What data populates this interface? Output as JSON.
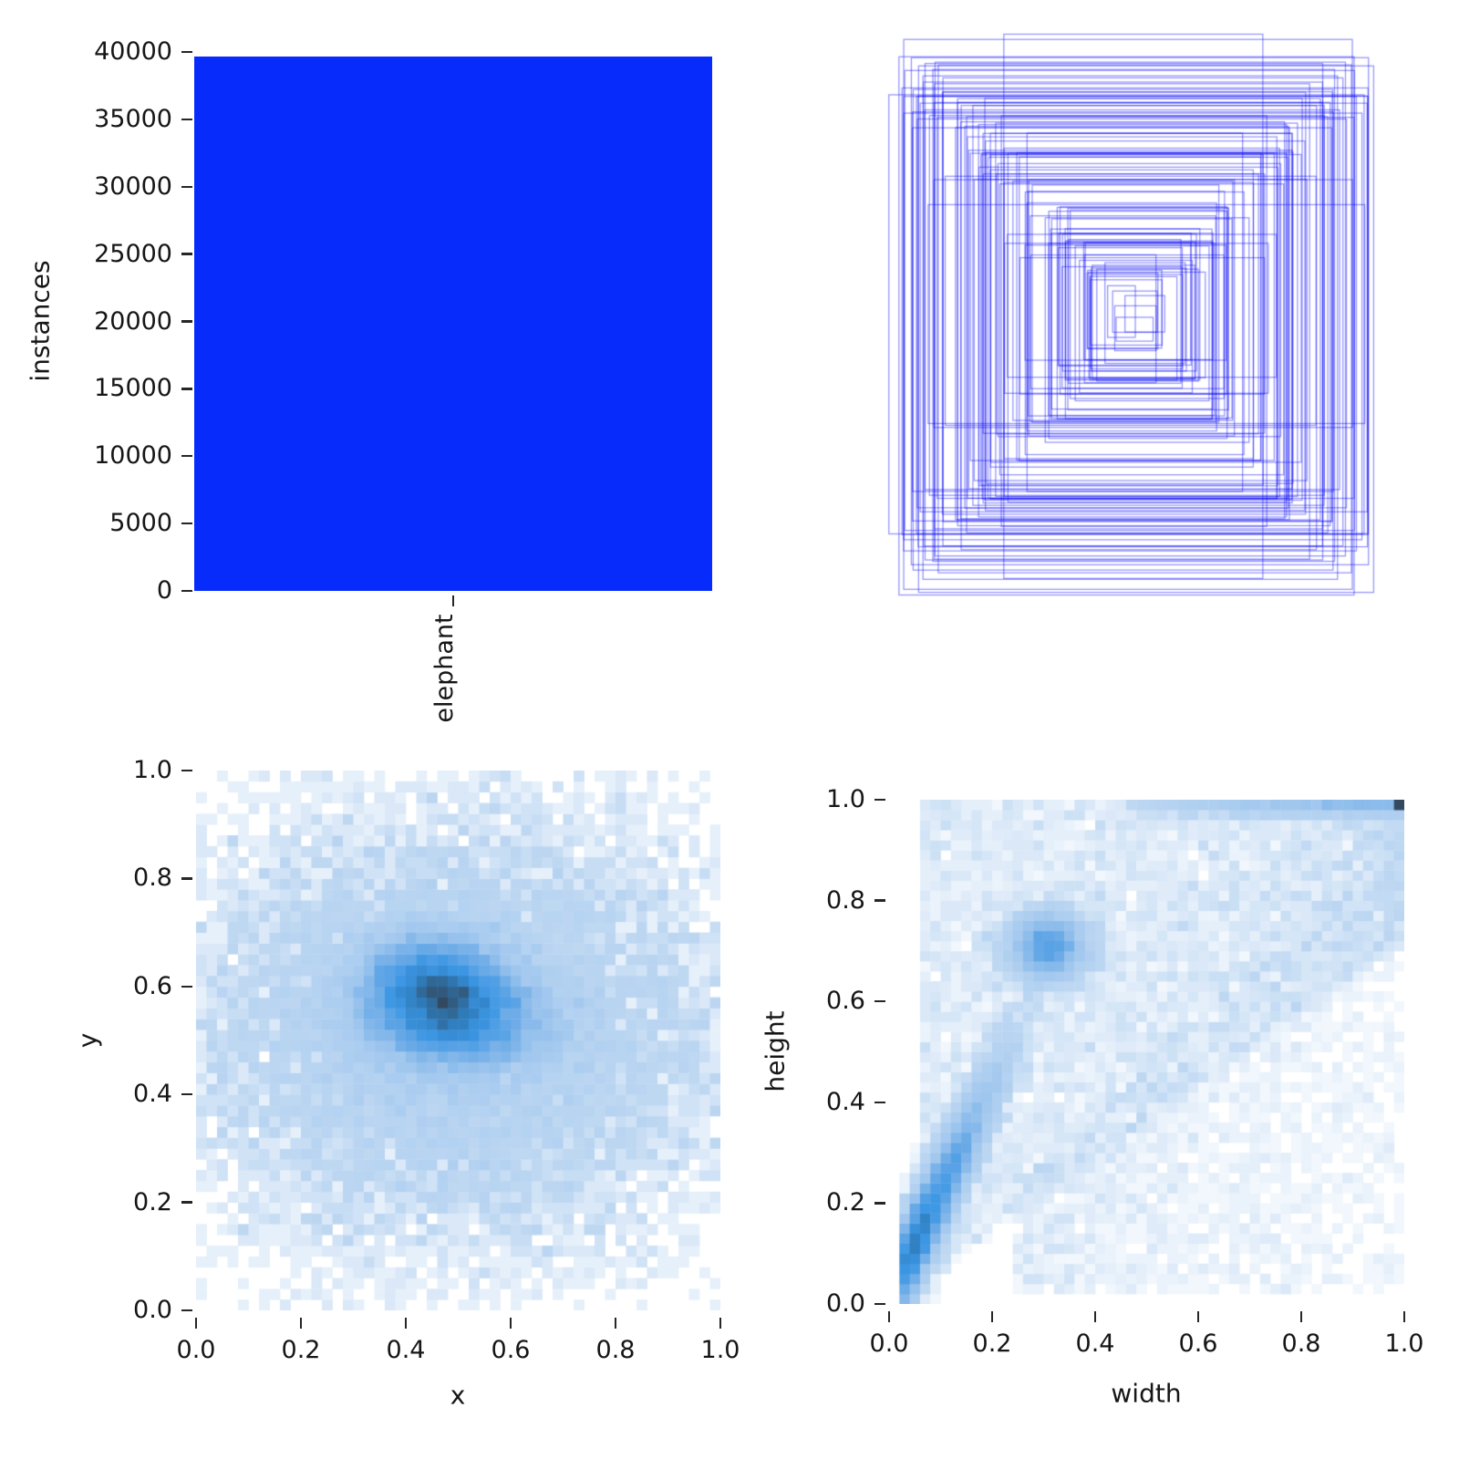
{
  "figure": {
    "background": "#ffffff",
    "text_color": "#161616",
    "tick_color": "#262626",
    "grid": false,
    "legend": false
  },
  "chart_data": [
    {
      "id": "instances_bar",
      "type": "bar",
      "position": "top-left",
      "title": "",
      "categories": [
        "elephant"
      ],
      "values": [
        39660
      ],
      "xlabel": "",
      "ylabel": "instances",
      "ylim": [
        0,
        40000
      ],
      "yticks": [
        0,
        5000,
        10000,
        15000,
        20000,
        25000,
        30000,
        35000,
        40000
      ],
      "ytick_labels": [
        "0",
        "5000",
        "10000",
        "15000",
        "20000",
        "25000",
        "30000",
        "35000",
        "40000"
      ],
      "bar_color": "#062bfa"
    },
    {
      "id": "bounding_boxes_overlay",
      "type": "box-overlay",
      "position": "top-right",
      "description": "Approximately 120 nested blue bounding-box outlines, roughly concentric around the panel center, no axes",
      "box_count": 120,
      "stroke_color": "#0a0af5",
      "stroke_opacity": 0.42,
      "line_width": 1.3,
      "center_jitter": 0.055,
      "seed": 7
    },
    {
      "id": "xy_location_heatmap",
      "type": "heatmap",
      "position": "bottom-left",
      "xlabel": "x",
      "ylabel": "y",
      "xlim": [
        0,
        1
      ],
      "ylim": [
        0,
        1
      ],
      "xticks": [
        0.0,
        0.2,
        0.4,
        0.6,
        0.8,
        1.0
      ],
      "yticks": [
        0.0,
        0.2,
        0.4,
        0.6,
        0.8,
        1.0
      ],
      "xtick_labels": [
        "0.0",
        "0.2",
        "0.4",
        "0.6",
        "0.8",
        "1.0"
      ],
      "ytick_labels": [
        "0.0",
        "0.2",
        "0.4",
        "0.6",
        "0.8",
        "1.0"
      ],
      "bins": 50,
      "samples": 30000,
      "seed": 11,
      "gamma": 0.6,
      "distribution_note": "dense dark cluster centered near (0.47,0.55), broad light-blue background over most of the unit square, sparse at edges",
      "components": [
        {
          "kind": "gauss",
          "frac": 0.3,
          "cx": 0.455,
          "cy": 0.6,
          "sx": 0.075,
          "sy": 0.05
        },
        {
          "kind": "gauss",
          "frac": 0.26,
          "cx": 0.5,
          "cy": 0.535,
          "sx": 0.09,
          "sy": 0.05
        },
        {
          "kind": "gauss",
          "frac": 0.44,
          "cx": 0.5,
          "cy": 0.52,
          "sx": 0.27,
          "sy": 0.21
        }
      ]
    },
    {
      "id": "width_height_heatmap",
      "type": "heatmap",
      "position": "bottom-right",
      "xlabel": "width",
      "ylabel": "height",
      "xlim": [
        0,
        1
      ],
      "ylim": [
        0,
        1
      ],
      "xticks": [
        0.0,
        0.2,
        0.4,
        0.6,
        0.8,
        1.0
      ],
      "yticks": [
        0.0,
        0.2,
        0.4,
        0.6,
        0.8,
        1.0
      ],
      "xtick_labels": [
        "0.0",
        "0.2",
        "0.4",
        "0.6",
        "0.8",
        "1.0"
      ],
      "ytick_labels": [
        "0.0",
        "0.2",
        "0.4",
        "0.6",
        "0.8",
        "1.0"
      ],
      "bins": 50,
      "samples": 30000,
      "seed": 23,
      "gamma": 0.62,
      "distribution_note": "dark diagonal ridge height≈2×width from (0.03,0.08) to (0.3,0.65), dark secondary blob near (0.31,0.71), light fan above diagonal, bright row at height≈1.0, dark cell at (1.0,1.0)",
      "components": [
        {
          "kind": "ridge",
          "frac": 0.47,
          "x0": 0.025,
          "xs": 0.09,
          "slope": 2.05,
          "intercept": 0.015,
          "noise": 0.05
        },
        {
          "kind": "gauss",
          "frac": 0.16,
          "cx": 0.31,
          "cy": 0.71,
          "sx": 0.04,
          "sy": 0.035
        },
        {
          "kind": "fan",
          "frac": 0.23,
          "xmin": 0.06,
          "xmax": 1.0,
          "xpow": 1.15,
          "lo": 0.72
        },
        {
          "kind": "strip",
          "frac": 0.065,
          "ymin": 0.975,
          "ymax": 0.999,
          "xmin": 0.45,
          "xmax": 1.0
        },
        {
          "kind": "corner",
          "frac": 0.012,
          "x0": 0.981,
          "y0": 0.981
        },
        {
          "kind": "under",
          "frac": 0.063,
          "xmin": 0.25,
          "xmax": 1.0,
          "k": 0.95
        }
      ]
    }
  ],
  "heatmap_palette": {
    "stops": [
      [
        0.0,
        "#ffffff"
      ],
      [
        0.1,
        "#bdd7f2"
      ],
      [
        0.3,
        "#9fc6ee"
      ],
      [
        0.5,
        "#68a9e6"
      ],
      [
        0.68,
        "#3d97e4"
      ],
      [
        0.84,
        "#2e7dbd"
      ],
      [
        1.0,
        "#33495f"
      ]
    ]
  }
}
